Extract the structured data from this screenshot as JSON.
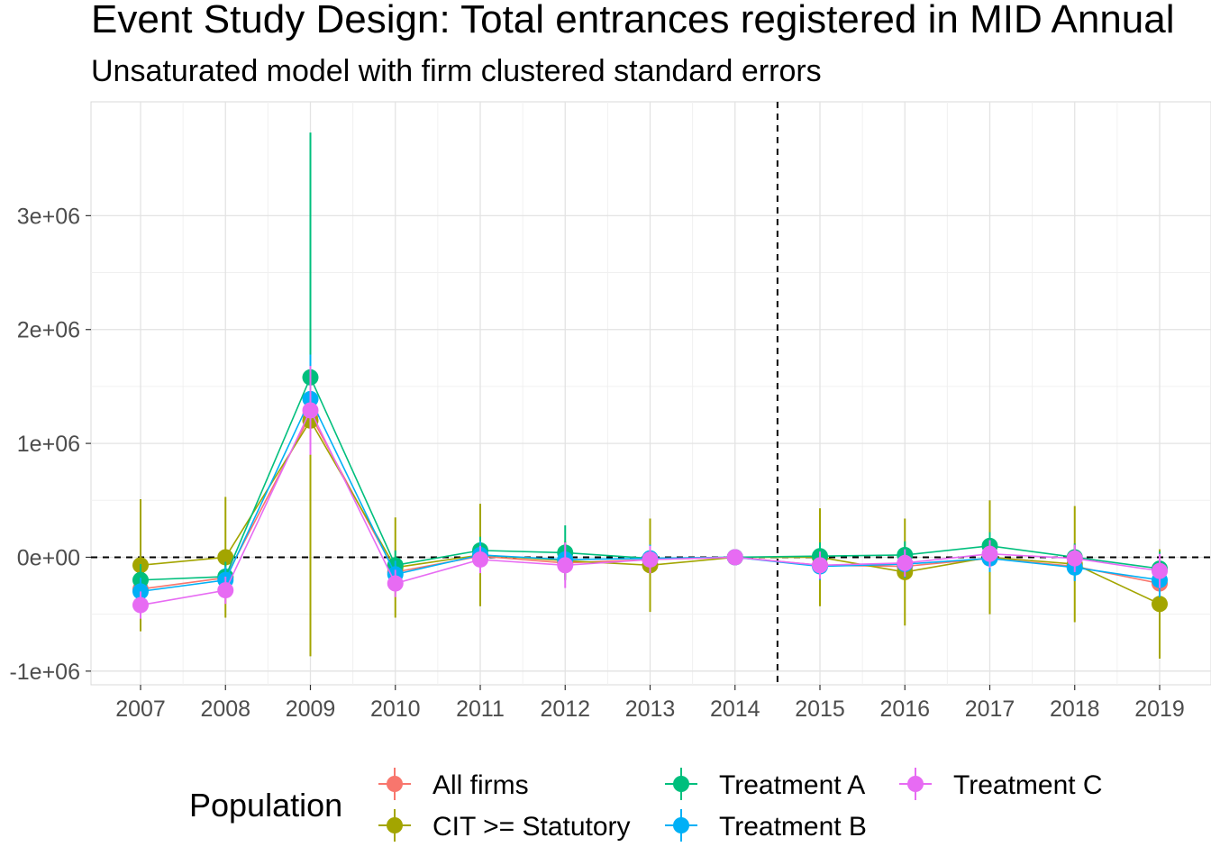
{
  "chart_data": {
    "type": "line",
    "title": "Event Study Design: Total entrances registered in MID Annual",
    "subtitle": "Unsaturated model with firm clustered standard errors",
    "xlabel": "",
    "ylabel": "",
    "x": [
      "2007",
      "2008",
      "2009",
      "2010",
      "2011",
      "2012",
      "2013",
      "2014",
      "2015",
      "2016",
      "2017",
      "2018",
      "2019"
    ],
    "ylim": [
      -1120000,
      4000000
    ],
    "y_ticks": [
      -1000000,
      0,
      1000000,
      2000000,
      3000000
    ],
    "y_tick_labels": [
      "-1e+06",
      "0e+00",
      "1e+06",
      "2e+06",
      "3e+06"
    ],
    "reference_lines": {
      "h": 0,
      "v_between": [
        "2014",
        "2015"
      ]
    },
    "grid": true,
    "legend": {
      "title": "Population",
      "position": "bottom"
    },
    "series": [
      {
        "name": "All firms",
        "color": "#F8766D",
        "values": [
          -280000,
          -180000,
          1250000,
          -130000,
          10000,
          -50000,
          -20000,
          0,
          -70000,
          -80000,
          -10000,
          -80000,
          -230000
        ],
        "lower": [
          -400000,
          -300000,
          600000,
          -260000,
          -110000,
          -170000,
          -130000,
          0,
          -190000,
          -200000,
          -130000,
          -200000,
          -380000
        ],
        "upper": [
          -160000,
          -60000,
          1900000,
          0,
          130000,
          70000,
          90000,
          0,
          50000,
          40000,
          110000,
          40000,
          -80000
        ]
      },
      {
        "name": "CIT >= Statutory",
        "color": "#A3A500",
        "values": [
          -70000,
          0,
          1200000,
          -90000,
          20000,
          -30000,
          -70000,
          0,
          0,
          -130000,
          0,
          -60000,
          -410000
        ],
        "lower": [
          -650000,
          -530000,
          -870000,
          -530000,
          -430000,
          -200000,
          -480000,
          0,
          -430000,
          -600000,
          -500000,
          -570000,
          -890000
        ],
        "upper": [
          510000,
          530000,
          3270000,
          350000,
          470000,
          140000,
          340000,
          0,
          430000,
          340000,
          500000,
          450000,
          70000
        ]
      },
      {
        "name": "Treatment A",
        "color": "#00BF7D",
        "values": [
          -200000,
          -170000,
          1580000,
          -70000,
          60000,
          40000,
          -10000,
          0,
          10000,
          20000,
          100000,
          0,
          -100000
        ],
        "lower": [
          -340000,
          -300000,
          1400000,
          -200000,
          -60000,
          -200000,
          -130000,
          0,
          -110000,
          -100000,
          -20000,
          -120000,
          -250000
        ],
        "upper": [
          -60000,
          -40000,
          3730000,
          60000,
          180000,
          280000,
          110000,
          0,
          130000,
          140000,
          220000,
          120000,
          50000
        ]
      },
      {
        "name": "Treatment B",
        "color": "#00B0F6",
        "values": [
          -300000,
          -200000,
          1390000,
          -150000,
          20000,
          -20000,
          -10000,
          0,
          -80000,
          -60000,
          -10000,
          -90000,
          -200000
        ],
        "lower": [
          -420000,
          -320000,
          1000000,
          -270000,
          -100000,
          -140000,
          -130000,
          0,
          -200000,
          -180000,
          -130000,
          -210000,
          -350000
        ],
        "upper": [
          -180000,
          -80000,
          1780000,
          -30000,
          140000,
          100000,
          110000,
          0,
          40000,
          60000,
          110000,
          30000,
          -50000
        ]
      },
      {
        "name": "Treatment C",
        "color": "#E76BF3",
        "values": [
          -420000,
          -290000,
          1290000,
          -230000,
          -20000,
          -70000,
          -20000,
          0,
          -70000,
          -50000,
          30000,
          -10000,
          -120000
        ],
        "lower": [
          -540000,
          -410000,
          900000,
          -350000,
          -140000,
          -270000,
          -140000,
          0,
          -190000,
          -170000,
          -90000,
          -130000,
          -270000
        ],
        "upper": [
          -300000,
          -170000,
          1680000,
          -110000,
          100000,
          130000,
          100000,
          0,
          50000,
          70000,
          150000,
          110000,
          30000
        ]
      }
    ]
  }
}
